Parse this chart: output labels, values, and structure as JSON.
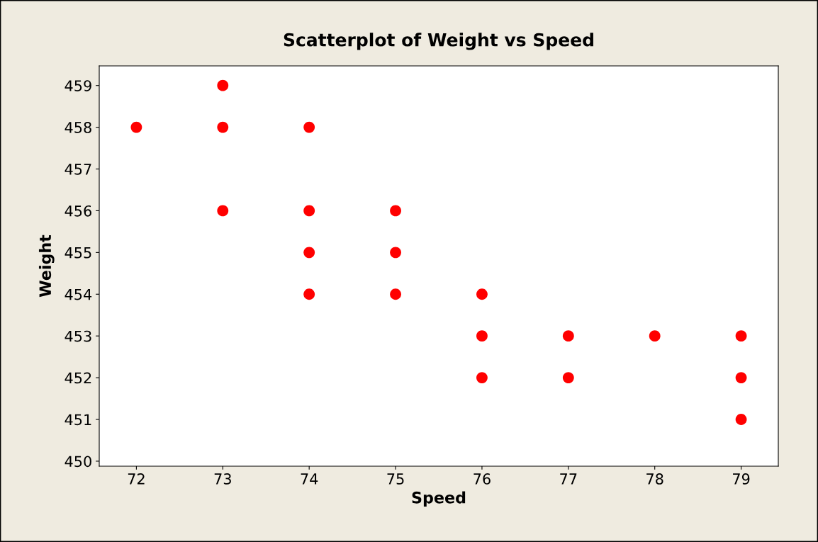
{
  "chart_data": {
    "type": "scatter",
    "title": "Scatterplot of Weight vs Speed",
    "xlabel": "Speed",
    "ylabel": "Weight",
    "x": [
      72,
      73,
      73,
      73,
      74,
      74,
      74,
      74,
      75,
      75,
      75,
      76,
      76,
      76,
      77,
      77,
      78,
      79,
      79,
      79
    ],
    "values": [
      458,
      459,
      458,
      456,
      458,
      456,
      455,
      454,
      456,
      455,
      454,
      454,
      453,
      452,
      453,
      452,
      453,
      453,
      452,
      451
    ],
    "color": "#ff0000",
    "marker": "circle",
    "grid": false,
    "legend": false,
    "xlim": [
      71.57,
      79.43
    ],
    "xticks": [
      72,
      73,
      74,
      75,
      76,
      77,
      78,
      79
    ],
    "ylim": [
      449.88,
      459.47
    ],
    "yticks": [
      450,
      451,
      452,
      453,
      454,
      455,
      456,
      457,
      458,
      459
    ]
  }
}
